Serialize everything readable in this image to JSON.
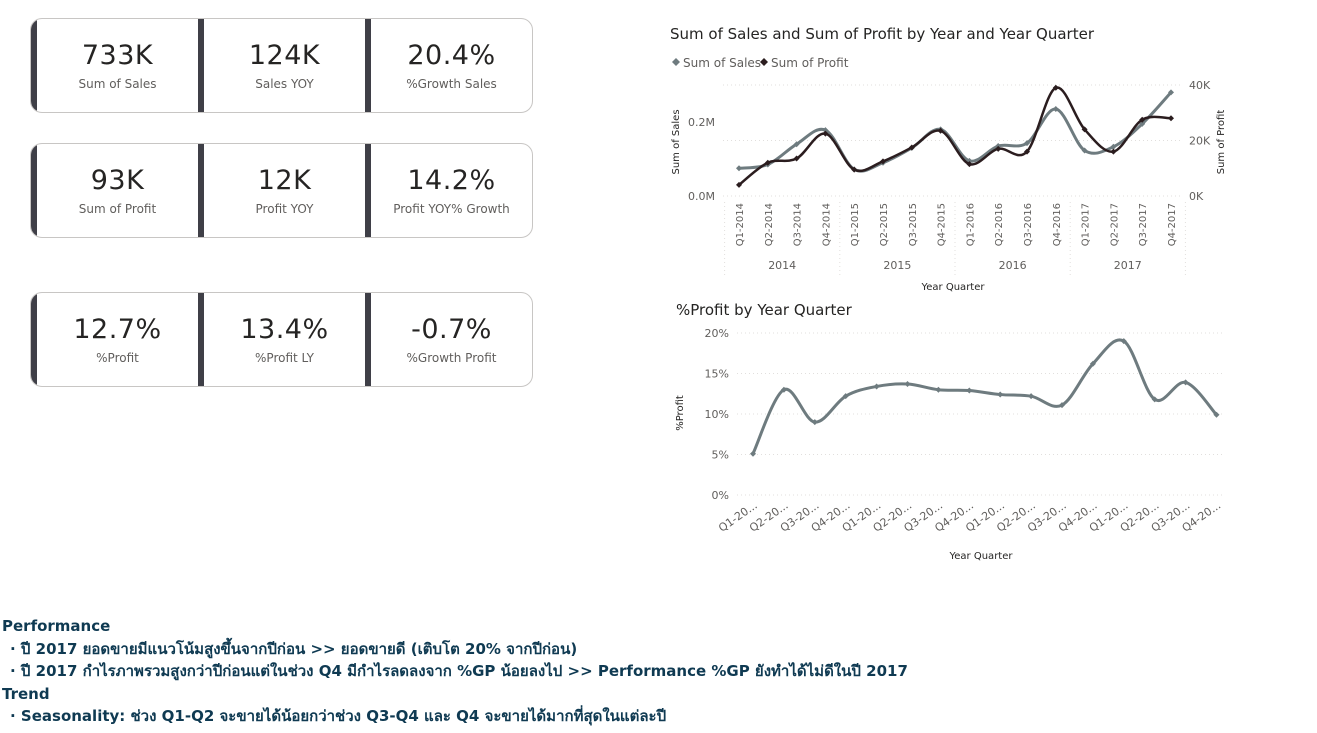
{
  "kpi_rows": [
    [
      {
        "value": "733K",
        "label": "Sum of Sales"
      },
      {
        "value": "124K",
        "label": "Sales YOY"
      },
      {
        "value": "20.4%",
        "label": "%Growth Sales"
      }
    ],
    [
      {
        "value": "93K",
        "label": "Sum of Profit"
      },
      {
        "value": "12K",
        "label": "Profit YOY"
      },
      {
        "value": "14.2%",
        "label": "Profit YOY% Growth"
      }
    ],
    [
      {
        "value": "12.7%",
        "label": "%Profit"
      },
      {
        "value": "13.4%",
        "label": "%Profit LY"
      },
      {
        "value": "-0.7%",
        "label": "%Growth Profit"
      }
    ]
  ],
  "chart_data": [
    {
      "type": "line",
      "title": "Sum of Sales and Sum of Profit by Year and Year Quarter",
      "xlabel": "Year Quarter",
      "ylabel_left": "Sum of Sales",
      "ylabel_right": "Sum of Profit",
      "legend_position": "top-left",
      "categories": [
        "Q1-2014",
        "Q2-2014",
        "Q3-2014",
        "Q4-2014",
        "Q1-2015",
        "Q2-2015",
        "Q3-2015",
        "Q4-2015",
        "Q1-2016",
        "Q2-2016",
        "Q3-2016",
        "Q4-2016",
        "Q1-2017",
        "Q2-2017",
        "Q3-2017",
        "Q4-2017"
      ],
      "year_groups": [
        "2014",
        "2015",
        "2016",
        "2017"
      ],
      "left_axis": {
        "ticks": [
          "0.0M",
          "0.2M"
        ],
        "tick_values": [
          0,
          200000
        ],
        "range": [
          0,
          300000
        ]
      },
      "right_axis": {
        "ticks": [
          "0K",
          "20K",
          "40K"
        ],
        "tick_values": [
          0,
          20000,
          40000
        ],
        "range": [
          0,
          40000
        ]
      },
      "series": [
        {
          "name": "Sum of Sales",
          "axis": "left",
          "color": "#6e7b7f",
          "values": [
            75000,
            85000,
            140000,
            178000,
            72000,
            90000,
            130000,
            180000,
            95000,
            135000,
            143000,
            235000,
            123000,
            133000,
            195000,
            280000
          ]
        },
        {
          "name": "Sum of Profit",
          "axis": "right",
          "color": "#2b1d1f",
          "values": [
            4000,
            12000,
            13500,
            22500,
            9500,
            12500,
            17500,
            23500,
            11500,
            17000,
            16000,
            39000,
            24000,
            16000,
            27500,
            28000
          ]
        }
      ],
      "grid": true
    },
    {
      "type": "line",
      "title": "%Profit by Year Quarter",
      "xlabel": "Year Quarter",
      "ylabel": "%Profit",
      "categories": [
        "Q1-20...",
        "Q2-20...",
        "Q3-20...",
        "Q4-20...",
        "Q1-20...",
        "Q2-20...",
        "Q3-20...",
        "Q4-20...",
        "Q1-20...",
        "Q2-20...",
        "Q3-20...",
        "Q4-20...",
        "Q1-20...",
        "Q2-20...",
        "Q3-20...",
        "Q4-20..."
      ],
      "y_axis": {
        "ticks": [
          "0%",
          "5%",
          "10%",
          "15%",
          "20%"
        ],
        "tick_values": [
          0,
          5,
          10,
          15,
          20
        ],
        "range": [
          0,
          20
        ]
      },
      "series": [
        {
          "color": "#6e7b7f",
          "values": [
            5.1,
            13.0,
            9.0,
            12.2,
            13.4,
            13.7,
            13.0,
            12.9,
            12.4,
            12.2,
            11.1,
            16.2,
            19.0,
            11.8,
            13.9,
            9.9
          ]
        }
      ],
      "grid": true
    }
  ],
  "notes": {
    "performance_heading": "Performance",
    "performance_items": [
      "· ปี 2017 ยอดขายมีแนวโน้มสูงขึ้นจากปีก่อน >> ยอดขายดี  (เติบโต 20% จากปีก่อน)",
      "· ปี 2017 กำไรภาพรวมสูงกว่าปีก่อนแต่ในช่วง Q4 มีกำไรลดลงจาก %GP น้อยลงไป >> Performance %GP ยังทำได้ไม่ดีในปี 2017"
    ],
    "trend_heading": "Trend",
    "trend_items": [
      "· Seasonality: ช่วง Q1-Q2 จะขายได้น้อยกว่าช่วง Q3-Q4 และ Q4 จะขายได้มากที่สุดในแต่ละปี"
    ]
  }
}
